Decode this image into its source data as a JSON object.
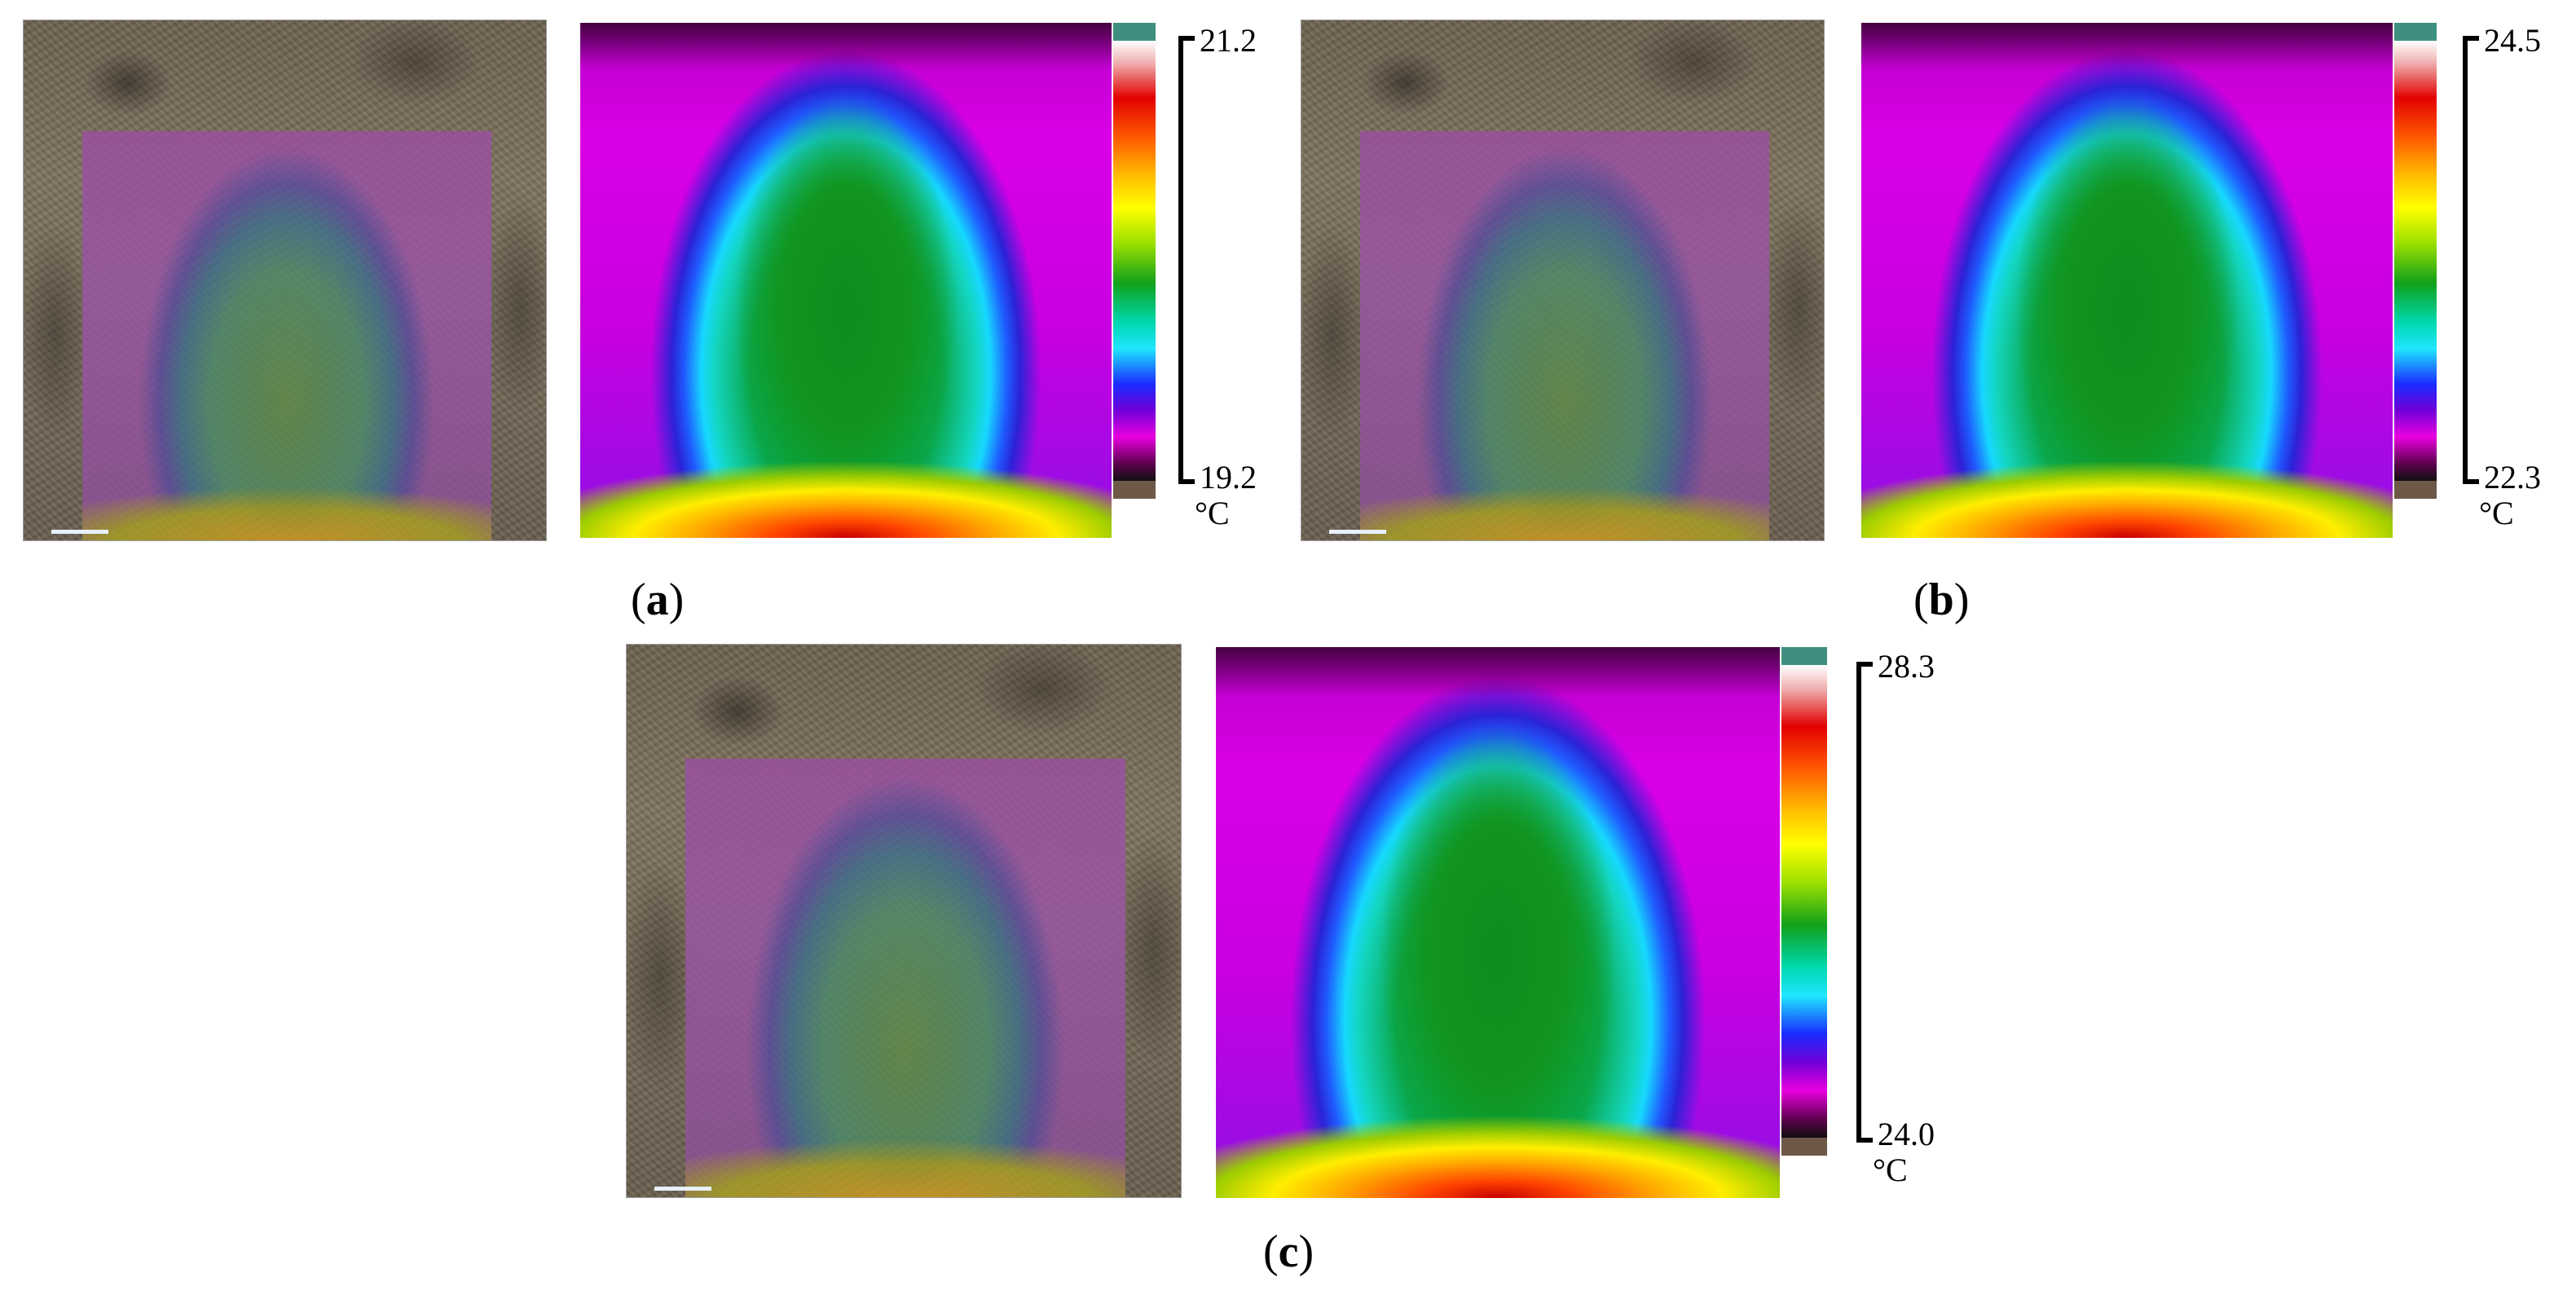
{
  "panels": [
    {
      "label_open": "(",
      "label_letter": "a",
      "label_close": ")",
      "max": "21.2",
      "min": "19.2",
      "unit": "°C"
    },
    {
      "label_open": "(",
      "label_letter": "b",
      "label_close": ")",
      "max": "24.5",
      "min": "22.3",
      "unit": "°C"
    },
    {
      "label_open": "(",
      "label_letter": "c",
      "label_close": ")",
      "max": "28.3",
      "min": "24.0",
      "unit": "°C"
    }
  ],
  "colors": {
    "background": "#ffffff",
    "colorbar_top": "#3f8f80",
    "colorbar_bottom": "#6e5848",
    "thermal_palette": [
      "#ffffff",
      "#e20000",
      "#ff5a00",
      "#ffff00",
      "#11a11a",
      "#00d8b0",
      "#1fe6ff",
      "#1a2cff",
      "#e800e0",
      "#101010"
    ]
  }
}
